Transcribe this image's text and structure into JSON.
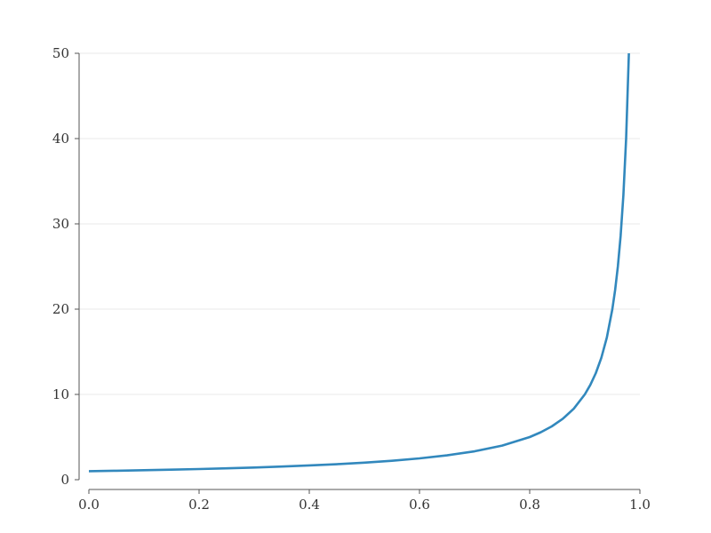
{
  "chart_data": {
    "type": "line",
    "title": "",
    "xlabel": "",
    "ylabel": "",
    "xlim": [
      0.0,
      1.0
    ],
    "ylim": [
      0,
      50
    ],
    "grid": "horizontal",
    "legend": "none",
    "x_ticks": [
      "0.0",
      "0.2",
      "0.4",
      "0.6",
      "0.8",
      "1.0"
    ],
    "y_ticks": [
      "0",
      "10",
      "20",
      "30",
      "40",
      "50"
    ],
    "series": [
      {
        "color": "#3288bd",
        "x": [
          0.0,
          0.05,
          0.1,
          0.15,
          0.2,
          0.25,
          0.3,
          0.35,
          0.4,
          0.45,
          0.5,
          0.55,
          0.6,
          0.65,
          0.7,
          0.75,
          0.8,
          0.82,
          0.84,
          0.86,
          0.88,
          0.9,
          0.91,
          0.92,
          0.93,
          0.94,
          0.95,
          0.955,
          0.96,
          0.965,
          0.97,
          0.975,
          0.98
        ],
        "y": [
          1.0,
          1.05,
          1.11,
          1.18,
          1.25,
          1.33,
          1.43,
          1.54,
          1.67,
          1.82,
          2.0,
          2.22,
          2.5,
          2.86,
          3.33,
          4.0,
          5.0,
          5.56,
          6.25,
          7.14,
          8.33,
          10.0,
          11.11,
          12.5,
          14.29,
          16.67,
          20.0,
          22.22,
          25.0,
          28.57,
          33.33,
          40.0,
          50.0
        ]
      }
    ]
  }
}
